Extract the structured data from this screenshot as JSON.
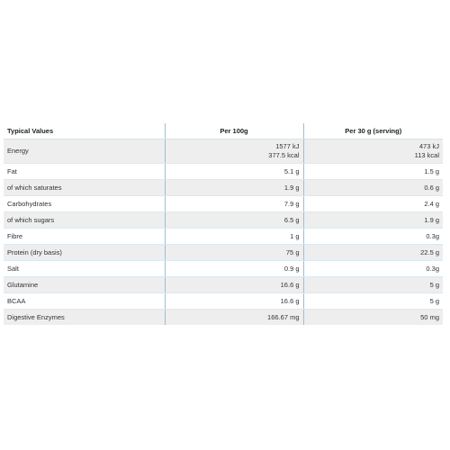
{
  "table": {
    "headers": [
      "Typical Values",
      "Per 100g",
      "Per 30 g (serving)"
    ],
    "rows": [
      {
        "name": "Energy",
        "per100": [
          "1577 kJ",
          "377.5 kcal"
        ],
        "serving": [
          "473 kJ",
          "113 kcal"
        ]
      },
      {
        "name": "Fat",
        "per100": [
          "5.1 g"
        ],
        "serving": [
          "1.5 g"
        ]
      },
      {
        "name": "of which saturates",
        "per100": [
          "1.9 g"
        ],
        "serving": [
          "0.6 g"
        ]
      },
      {
        "name": "Carbohydrates",
        "per100": [
          "7.9 g"
        ],
        "serving": [
          "2.4 g"
        ]
      },
      {
        "name": "of which sugars",
        "per100": [
          "6.5 g"
        ],
        "serving": [
          "1.9 g"
        ]
      },
      {
        "name": "Fibre",
        "per100": [
          "1 g"
        ],
        "serving": [
          "0.3g"
        ]
      },
      {
        "name": "Protein (dry basis)",
        "per100": [
          "75 g"
        ],
        "serving": [
          "22.5 g"
        ]
      },
      {
        "name": "Salt",
        "per100": [
          "0.9 g"
        ],
        "serving": [
          "0.3g"
        ]
      },
      {
        "name": "Glutamine",
        "per100": [
          "16.6 g"
        ],
        "serving": [
          "5 g"
        ]
      },
      {
        "name": "BCAA",
        "per100": [
          "16.6 g"
        ],
        "serving": [
          "5 g"
        ]
      },
      {
        "name": "Digestive Enzymes",
        "per100": [
          "166.67 mg"
        ],
        "serving": [
          "50 mg"
        ]
      }
    ]
  },
  "colors": {
    "divider": "#8fc4e0",
    "row_line": "#d9e9f3",
    "shade": "#eeeeee"
  }
}
